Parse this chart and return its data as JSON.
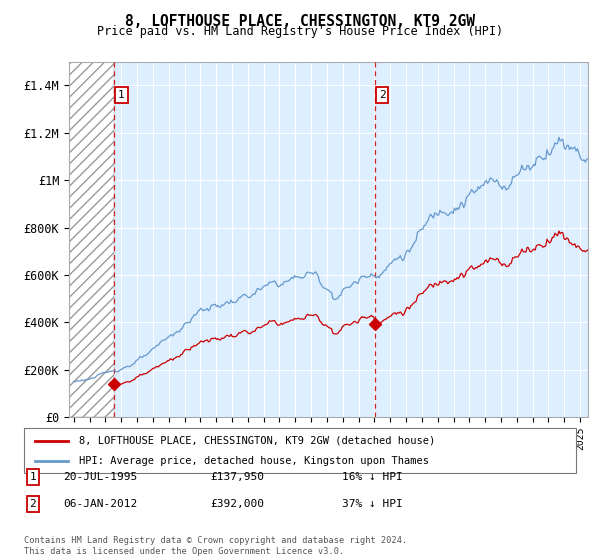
{
  "title": "8, LOFTHOUSE PLACE, CHESSINGTON, KT9 2GW",
  "subtitle": "Price paid vs. HM Land Registry's House Price Index (HPI)",
  "ylim": [
    0,
    1500000
  ],
  "yticks": [
    0,
    200000,
    400000,
    600000,
    800000,
    1000000,
    1200000,
    1400000
  ],
  "ytick_labels": [
    "£0",
    "£200K",
    "£400K",
    "£600K",
    "£800K",
    "£1M",
    "£1.2M",
    "£1.4M"
  ],
  "sale1_date_num": 1995.55,
  "sale1_price": 137950,
  "sale2_date_num": 2012.02,
  "sale2_price": 392000,
  "hpi_color": "#6699cc",
  "price_color": "#cc0000",
  "bg_color": "#ddeeff",
  "legend_line1": "8, LOFTHOUSE PLACE, CHESSINGTON, KT9 2GW (detached house)",
  "legend_line2": "HPI: Average price, detached house, Kingston upon Thames",
  "footnote": "Contains HM Land Registry data © Crown copyright and database right 2024.\nThis data is licensed under the Open Government Licence v3.0.",
  "table_row1": [
    "1",
    "20-JUL-1995",
    "£137,950",
    "16% ↓ HPI"
  ],
  "table_row2": [
    "2",
    "06-JAN-2012",
    "£392,000",
    "37% ↓ HPI"
  ],
  "hatch_end_year": 1995.55,
  "xmin": 1993.0,
  "xmax": 2025.5,
  "n_points": 390
}
